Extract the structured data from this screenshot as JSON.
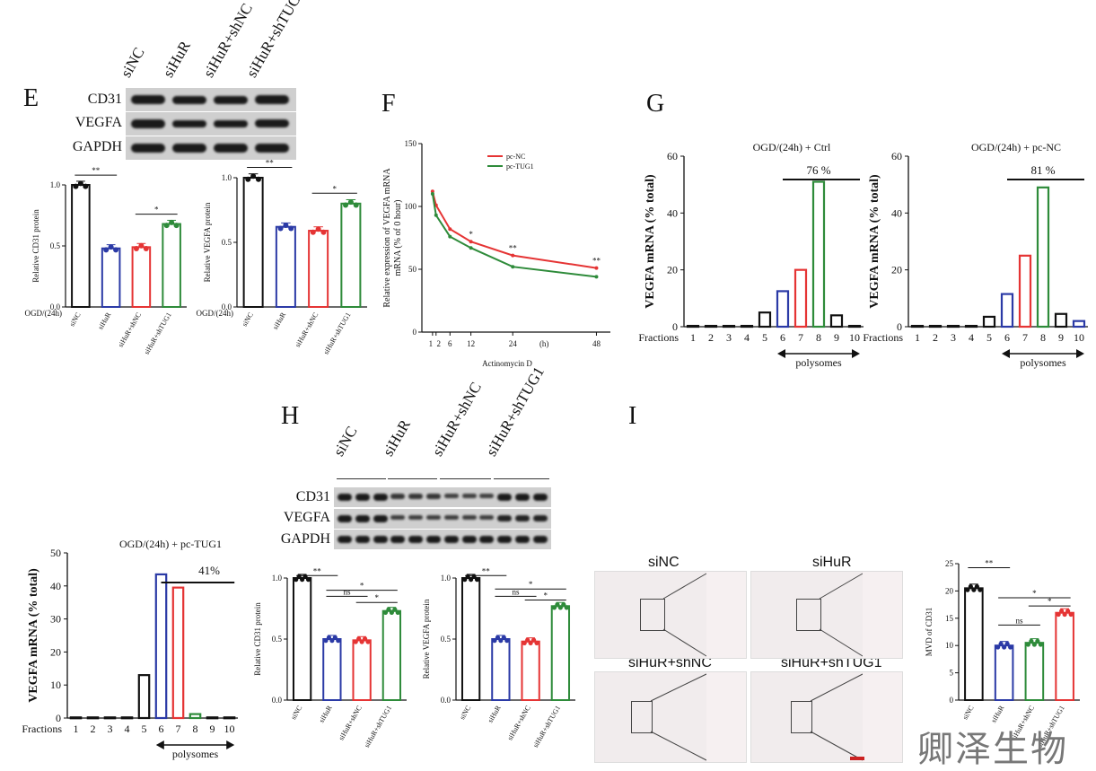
{
  "panels": {
    "E": "E",
    "F": "F",
    "G": "G",
    "H": "H",
    "I": "I"
  },
  "watermark": "卿泽生物",
  "colors": {
    "black": "#111111",
    "blue": "#2b3aa6",
    "red": "#e53434",
    "green": "#2e8b3a"
  },
  "e_blot": {
    "columns": [
      "siNC",
      "siHuR",
      "siHuR+shNC",
      "siHuR+shTUG1"
    ],
    "rows": [
      "CD31",
      "VEGFA",
      "GAPDH"
    ]
  },
  "h_blot": {
    "columns": [
      "siNC",
      "siHuR",
      "siHuR+shNC",
      "siHuR+shTUG1"
    ],
    "rows": [
      "CD31",
      "VEGFA",
      "GAPDH"
    ]
  },
  "tissue": {
    "labels": [
      "siNC",
      "siHuR",
      "siHuR+shNC",
      "siHuR+shTUG1"
    ]
  },
  "chart_data": [
    {
      "id": "E_CD31",
      "type": "bar",
      "ylabel": "Relative CD31 protein",
      "ylim": [
        0,
        1
      ],
      "yticks": [
        "0.0",
        "0.5",
        "1.0"
      ],
      "treatment": "OGD/(24h)",
      "categories": [
        "siNC",
        "siHuR",
        "siHuR+shNC",
        "siHuR+shTUG1"
      ],
      "values": [
        1.0,
        0.48,
        0.49,
        0.68
      ],
      "sig": [
        {
          "from": 0,
          "to": 1,
          "label": "**"
        },
        {
          "from": 2,
          "to": 3,
          "label": "*"
        }
      ]
    },
    {
      "id": "E_VEGFA",
      "type": "bar",
      "ylabel": "Relative VEGFA protein",
      "ylim": [
        0,
        1
      ],
      "yticks": [
        "0.0",
        "0.5",
        "1.0"
      ],
      "treatment": "OGD/(24h)",
      "categories": [
        "siNC",
        "siHuR",
        "siHuR+shNC",
        "siHuR+shTUG1"
      ],
      "values": [
        1.0,
        0.62,
        0.59,
        0.8
      ],
      "sig": [
        {
          "from": 0,
          "to": 1,
          "label": "**"
        },
        {
          "from": 2,
          "to": 3,
          "label": "*"
        }
      ]
    },
    {
      "id": "F",
      "type": "line",
      "ylabel": "Relative expression of VEGFA mRNA (% of 0 hour)",
      "xlabel": "Actinomycin D",
      "xunit": "(h)",
      "ylim": [
        0,
        150
      ],
      "yticks": [
        "0",
        "50",
        "100",
        "150"
      ],
      "xticks": [
        "1",
        "2",
        "6",
        "12",
        "24",
        "48"
      ],
      "x": [
        1,
        2,
        6,
        12,
        24,
        48
      ],
      "series": [
        {
          "name": "pc-NC",
          "values": [
            112,
            101,
            82,
            72,
            61,
            51
          ]
        },
        {
          "name": "pc-TUG1",
          "values": [
            110,
            93,
            76,
            67,
            52,
            44
          ]
        }
      ],
      "annotations": [
        {
          "x": 12,
          "label": "*"
        },
        {
          "x": 24,
          "label": "**"
        },
        {
          "x": 48,
          "label": "**"
        }
      ]
    },
    {
      "id": "G1",
      "type": "bar",
      "title": "OGD/(24h) + Ctrl",
      "ylabel": "VEGFA mRNA (% total)",
      "xlabel_prefix": "Fractions",
      "polysomes": "polysomes",
      "percent": "76 %",
      "ylim": [
        0,
        60
      ],
      "yticks": [
        "0",
        "20",
        "40",
        "60"
      ],
      "categories": [
        "1",
        "2",
        "3",
        "4",
        "5",
        "6",
        "7",
        "8",
        "9",
        "10"
      ],
      "values": [
        0.3,
        0.3,
        0.3,
        0.3,
        5,
        12.5,
        20,
        51,
        4,
        0.3
      ]
    },
    {
      "id": "G2",
      "type": "bar",
      "title": "OGD/(24h) + pc-NC",
      "ylabel": "VEGFA mRNA (% total)",
      "xlabel_prefix": "Fractions",
      "polysomes": "polysomes",
      "percent": "81 %",
      "ylim": [
        0,
        60
      ],
      "yticks": [
        "0",
        "20",
        "40",
        "60"
      ],
      "categories": [
        "1",
        "2",
        "3",
        "4",
        "5",
        "6",
        "7",
        "8",
        "9",
        "10"
      ],
      "values": [
        0.3,
        0.3,
        0.3,
        0.3,
        3.5,
        11.5,
        25,
        49,
        4.5,
        2
      ]
    },
    {
      "id": "G3",
      "type": "bar",
      "title": "OGD/(24h) + pc-TUG1",
      "ylabel": "VEGFA mRNA (% total)",
      "xlabel_prefix": "Fractions",
      "polysomes": "polysomes",
      "percent": "41%",
      "ylim": [
        0,
        50
      ],
      "yticks": [
        "0",
        "10",
        "20",
        "30",
        "40",
        "50"
      ],
      "categories": [
        "1",
        "2",
        "3",
        "4",
        "5",
        "6",
        "7",
        "8",
        "9",
        "10"
      ],
      "values": [
        0.2,
        0.2,
        0.2,
        0.2,
        13,
        43.5,
        39.5,
        1.2,
        0.2,
        0.2
      ]
    },
    {
      "id": "H_CD31",
      "type": "bar",
      "ylabel": "Relative CD31 protein",
      "ylim": [
        0,
        1
      ],
      "yticks": [
        "0.0",
        "0.5",
        "1.0"
      ],
      "categories": [
        "siNC",
        "siHuR",
        "siHuR+shNC",
        "siHuR+shTUG1"
      ],
      "values": [
        1.0,
        0.5,
        0.49,
        0.73
      ],
      "sig": [
        {
          "from": 0,
          "to": 1,
          "label": "**"
        },
        {
          "from": 1,
          "to": 2,
          "label": "ns"
        },
        {
          "from": 1,
          "to": 3,
          "label": "*"
        },
        {
          "from": 2,
          "to": 3,
          "label": "*"
        }
      ]
    },
    {
      "id": "H_VEGFA",
      "type": "bar",
      "ylabel": "Relative VEGFA protein",
      "ylim": [
        0,
        1
      ],
      "yticks": [
        "0.0",
        "0.5",
        "1.0"
      ],
      "categories": [
        "siNC",
        "siHuR",
        "siHuR+shNC",
        "siHuR+shTUG1"
      ],
      "values": [
        1.0,
        0.5,
        0.48,
        0.77
      ],
      "sig": [
        {
          "from": 0,
          "to": 1,
          "label": "**"
        },
        {
          "from": 1,
          "to": 2,
          "label": "ns"
        },
        {
          "from": 1,
          "to": 3,
          "label": "*"
        },
        {
          "from": 2,
          "to": 3,
          "label": "*"
        }
      ]
    },
    {
      "id": "I_MVD",
      "type": "bar",
      "ylabel": "MVD of CD31",
      "ylim": [
        0,
        25
      ],
      "yticks": [
        "0",
        "5",
        "10",
        "15",
        "20",
        "25"
      ],
      "categories": [
        "siNC",
        "siHuR",
        "siHuR+shNC",
        "siHuR+shTUG1"
      ],
      "values": [
        20.5,
        10,
        10.5,
        16
      ],
      "sig": [
        {
          "from": 0,
          "to": 1,
          "label": "**"
        },
        {
          "from": 1,
          "to": 2,
          "label": "ns"
        },
        {
          "from": 1,
          "to": 3,
          "label": "*"
        },
        {
          "from": 2,
          "to": 3,
          "label": "*"
        }
      ]
    }
  ]
}
